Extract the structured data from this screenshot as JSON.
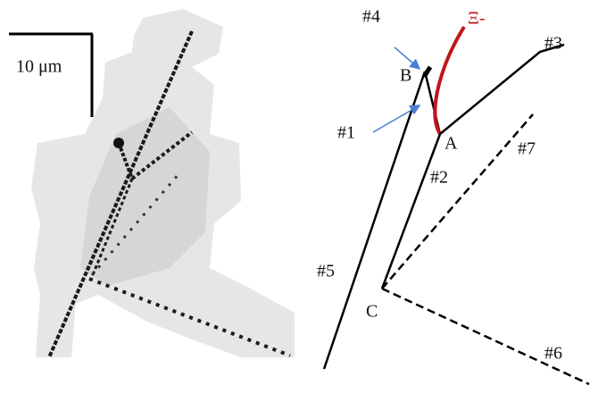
{
  "scale_bar": {
    "label": "10 μm"
  },
  "labels": {
    "track4": "#4",
    "xi": "Ξ-",
    "track3": "#3",
    "vertexB": "B",
    "track1": "#1",
    "vertexA": "A",
    "track7": "#7",
    "track2": "#2",
    "track5": "#5",
    "vertexC": "C",
    "track6": "#6"
  }
}
